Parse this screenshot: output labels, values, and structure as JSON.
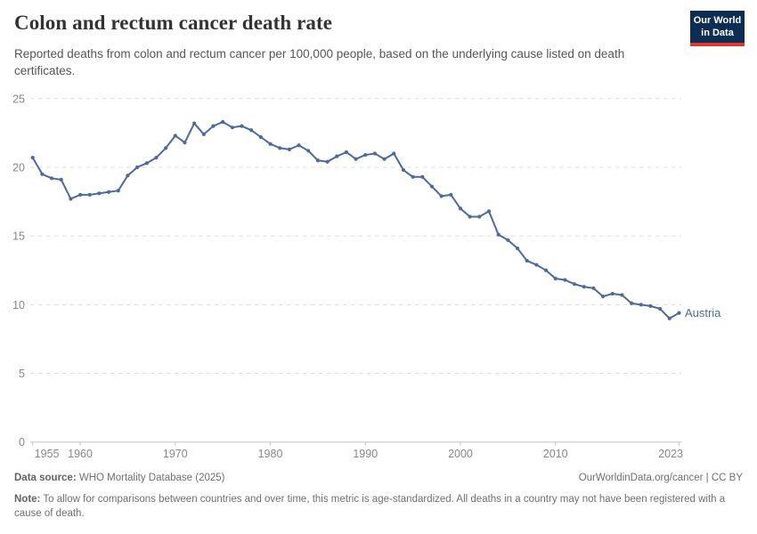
{
  "logo": {
    "line1": "Our World",
    "line2": "in Data",
    "bg_color": "#0d2e52",
    "bar_color": "#e0362c"
  },
  "chart_data": {
    "type": "line",
    "title": "Colon and rectum cancer death rate",
    "subtitle": "Reported deaths from colon and rectum cancer per 100,000 people, based on the underlying cause listed on death certificates.",
    "xlabel": "",
    "ylabel": "",
    "grid": "horizontal-dashed",
    "legend_position": "end-of-line-label",
    "xlim": [
      1955,
      2023
    ],
    "ylim": [
      0,
      25
    ],
    "x_ticks": [
      1955,
      1960,
      1970,
      1980,
      1990,
      2000,
      2010,
      2023
    ],
    "y_ticks": [
      0,
      5,
      10,
      15,
      20,
      25
    ],
    "x": [
      1955,
      1956,
      1957,
      1958,
      1959,
      1960,
      1961,
      1962,
      1963,
      1964,
      1965,
      1966,
      1967,
      1968,
      1969,
      1970,
      1971,
      1972,
      1973,
      1974,
      1975,
      1976,
      1977,
      1978,
      1979,
      1980,
      1981,
      1982,
      1983,
      1984,
      1985,
      1986,
      1987,
      1988,
      1989,
      1990,
      1991,
      1992,
      1993,
      1994,
      1995,
      1996,
      1997,
      1998,
      1999,
      2000,
      2001,
      2002,
      2003,
      2004,
      2005,
      2006,
      2007,
      2008,
      2009,
      2010,
      2011,
      2012,
      2013,
      2014,
      2015,
      2016,
      2017,
      2018,
      2019,
      2020,
      2021,
      2022,
      2023
    ],
    "series": [
      {
        "name": "Austria",
        "color": "#4C6A9C",
        "values": [
          20.7,
          19.5,
          19.2,
          19.1,
          17.7,
          18.0,
          18.0,
          18.1,
          18.2,
          18.3,
          19.4,
          20.0,
          20.3,
          20.7,
          21.4,
          22.3,
          21.8,
          23.2,
          22.4,
          23.0,
          23.3,
          22.9,
          23.0,
          22.7,
          22.2,
          21.7,
          21.4,
          21.3,
          21.6,
          21.2,
          20.5,
          20.4,
          20.8,
          21.1,
          20.6,
          20.9,
          21.0,
          20.6,
          21.0,
          19.8,
          19.3,
          19.3,
          18.6,
          17.9,
          18.0,
          17.0,
          16.4,
          16.4,
          16.8,
          15.1,
          14.7,
          14.1,
          13.2,
          12.9,
          12.5,
          11.9,
          11.8,
          11.5,
          11.3,
          11.2,
          10.6,
          10.8,
          10.7,
          10.1,
          10.0,
          9.9,
          9.7,
          9.0,
          9.4
        ]
      }
    ]
  },
  "footer": {
    "source_label": "Data source:",
    "source_value": " WHO Mortality Database (2025)",
    "link": "OurWorldinData.org/cancer | CC BY",
    "note_label": "Note:",
    "note_value": " To allow for comparisons between countries and over time, this metric is age-standardized. All deaths in a country may not have been registered with a cause of death."
  }
}
